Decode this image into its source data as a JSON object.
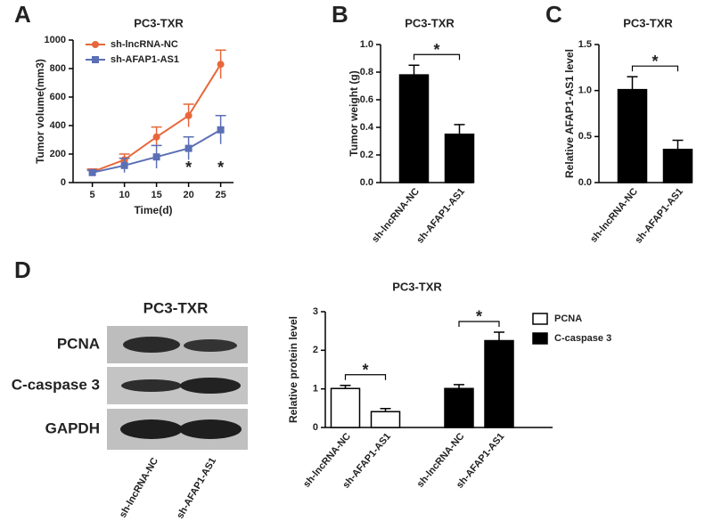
{
  "panel_labels": [
    "A",
    "B",
    "C",
    "D"
  ],
  "blot": {
    "title": "PC3-TXR",
    "rows": [
      "PCNA",
      "C-caspase 3",
      "GAPDH"
    ],
    "lanes": [
      "sh-lncRNA-NC",
      "sh-AFAP1-AS1"
    ]
  },
  "chart_data": [
    {
      "type": "line",
      "title": "PC3-TXR",
      "x_label": "Time(d)",
      "y_label": "Tumor volume(mm3)",
      "x": [
        5,
        10,
        15,
        20,
        25
      ],
      "xlim": [
        2,
        27
      ],
      "xticks": [
        5,
        10,
        15,
        20,
        25
      ],
      "ylim": [
        0,
        1000
      ],
      "yticks": [
        0,
        200,
        400,
        600,
        800,
        1000
      ],
      "legend": "upper-left",
      "series": [
        {
          "name": "sh-lncRNA-NC",
          "color": "#e8673a",
          "marker": "circle",
          "values": [
            75,
            160,
            320,
            470,
            830
          ],
          "errors": [
            20,
            40,
            70,
            80,
            100
          ]
        },
        {
          "name": "sh-AFAP1-AS1",
          "color": "#5b6fb5",
          "marker": "square",
          "values": [
            70,
            120,
            180,
            240,
            370
          ],
          "errors": [
            15,
            50,
            80,
            80,
            100
          ]
        }
      ],
      "annotations": [
        {
          "text": "*",
          "x": 20
        },
        {
          "text": "*",
          "x": 25
        }
      ]
    },
    {
      "type": "bar",
      "title": "PC3-TXR",
      "y_label": "Tumor weight (g)",
      "categories": [
        "sh-lncRNA-NC",
        "sh-AFAP1-AS1"
      ],
      "values": [
        0.78,
        0.35
      ],
      "errors": [
        0.07,
        0.07
      ],
      "color": "#000000",
      "ylim": [
        0,
        1
      ],
      "yticks": [
        {
          "value": 0,
          "label": "0.0"
        },
        0.2,
        0.4,
        0.6,
        0.8,
        {
          "value": 1,
          "label": "1.0"
        }
      ],
      "annotations": [
        "*"
      ]
    },
    {
      "type": "bar",
      "title": "PC3-TXR",
      "y_label": "Relative  AFAP1-AS1 level",
      "categories": [
        "sh-lncRNA-NC",
        "sh-AFAP1-AS1"
      ],
      "values": [
        1.01,
        0.36
      ],
      "errors": [
        0.14,
        0.1
      ],
      "color": "#000000",
      "ylim": [
        0,
        1.5
      ],
      "yticks": [
        {
          "value": 0,
          "label": "0.0"
        },
        0.5,
        {
          "value": 1,
          "label": "1.0"
        },
        1.5
      ],
      "annotations": [
        "*"
      ]
    },
    {
      "type": "bar",
      "title": "PC3-TXR",
      "y_label": "Relative protein level",
      "categories": [
        "sh-lncRNA-NC",
        "sh-AFAP1-AS1"
      ],
      "ylim": [
        0,
        3
      ],
      "yticks": [
        0,
        1,
        2,
        3
      ],
      "legend": "right",
      "series": [
        {
          "name": "PCNA",
          "color": "#ffffff",
          "values": [
            1.01,
            0.41
          ],
          "errors": [
            0.08,
            0.08
          ]
        },
        {
          "name": "C-caspase 3",
          "color": "#000000",
          "values": [
            1.01,
            2.25
          ],
          "errors": [
            0.1,
            0.22
          ]
        }
      ],
      "annotations": [
        "*",
        "*"
      ]
    }
  ]
}
